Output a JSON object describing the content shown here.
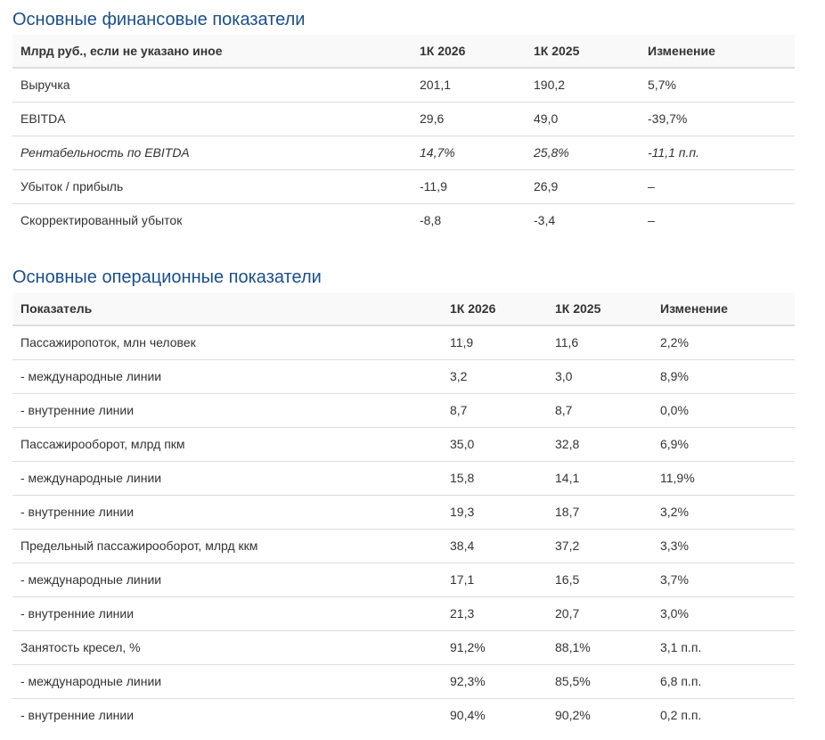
{
  "financial": {
    "title": "Основные финансовые показатели",
    "headers": [
      "Млрд руб., если не указано иное",
      "1К 2026",
      "1К 2025",
      "Изменение"
    ],
    "rows": [
      [
        "Выручка",
        "201,1",
        "190,2",
        "5,7%"
      ],
      [
        "EBITDA",
        "29,6",
        "49,0",
        "-39,7%"
      ],
      [
        "Рентабельность по EBITDA",
        "14,7%",
        "25,8%",
        "-11,1 п.п."
      ],
      [
        "Убыток / прибыль",
        "-11,9",
        "26,9",
        "–"
      ],
      [
        "Скорректированный убыток",
        "-8,8",
        "-3,4",
        "–"
      ]
    ]
  },
  "operational": {
    "title": "Основные операционные показатели",
    "headers": [
      "Показатель",
      "1К 2026",
      "1К 2025",
      "Изменение"
    ],
    "rows": [
      [
        "Пассажиропоток, млн человек",
        "11,9",
        "11,6",
        "2,2%"
      ],
      [
        "- международные линии",
        "3,2",
        "3,0",
        "8,9%"
      ],
      [
        "- внутренние линии",
        "8,7",
        "8,7",
        "0,0%"
      ],
      [
        "Пассажирооборот, млрд пкм",
        "35,0",
        "32,8",
        "6,9%"
      ],
      [
        "- международные линии",
        "15,8",
        "14,1",
        "11,9%"
      ],
      [
        "- внутренние линии",
        "19,3",
        "18,7",
        "3,2%"
      ],
      [
        "Предельный пассажирооборот, млрд ккм",
        "38,4",
        "37,2",
        "3,3%"
      ],
      [
        "- международные линии",
        "17,1",
        "16,5",
        "3,7%"
      ],
      [
        "- внутренние линии",
        "21,3",
        "20,7",
        "3,0%"
      ],
      [
        "Занятость кресел, %",
        "91,2%",
        "88,1%",
        "3,1 п.п."
      ],
      [
        "- международные линии",
        "92,3%",
        "85,5%",
        "6,8 п.п."
      ],
      [
        "- внутренние линии",
        "90,4%",
        "90,2%",
        "0,2 п.п."
      ]
    ]
  }
}
